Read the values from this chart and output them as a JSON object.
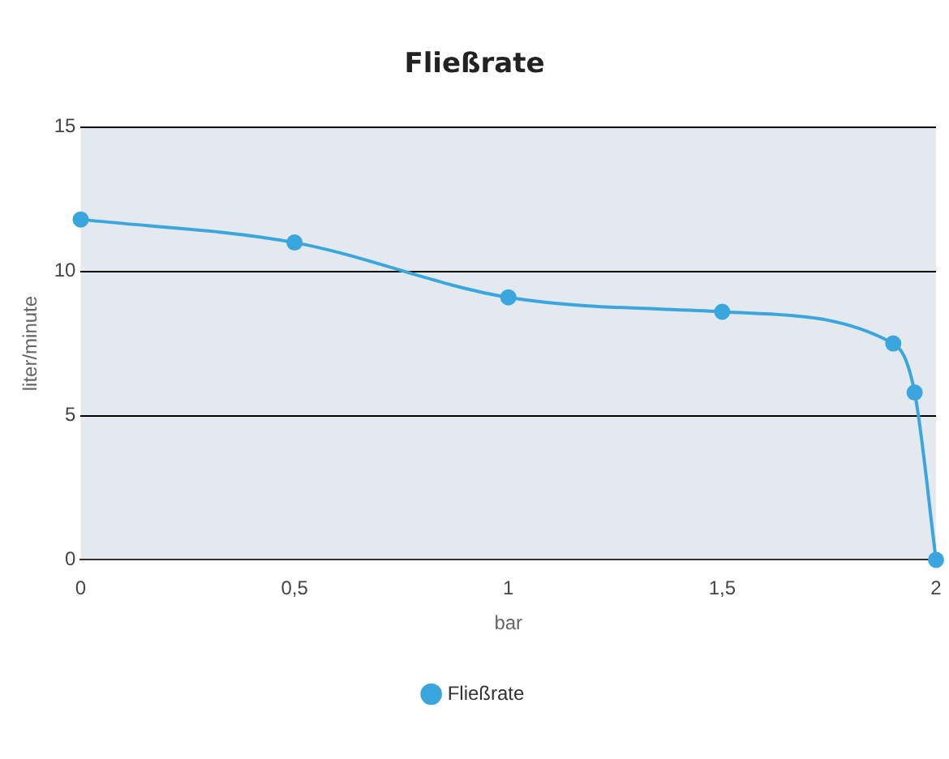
{
  "chart_data": {
    "type": "line",
    "title": "Fließrate",
    "xlabel": "bar",
    "ylabel": "liter/minute",
    "x": [
      0,
      0.5,
      1,
      1.5,
      1.9,
      1.95,
      2
    ],
    "series": [
      {
        "name": "Fließrate",
        "color": "#3aa6dd",
        "values": [
          11.8,
          11,
          9.1,
          8.6,
          7.5,
          5.8,
          0
        ]
      }
    ],
    "xlim": [
      0,
      2
    ],
    "xticks": [
      0,
      {
        "value": 0.5,
        "label": "0,5"
      },
      1,
      {
        "value": 1.5,
        "label": "1,5"
      },
      2
    ],
    "ylim": [
      0,
      15
    ],
    "yticks": [
      0,
      5,
      10,
      15
    ],
    "grid": "y",
    "legend": "bottom",
    "marker": "circle",
    "line_style": "solid"
  }
}
